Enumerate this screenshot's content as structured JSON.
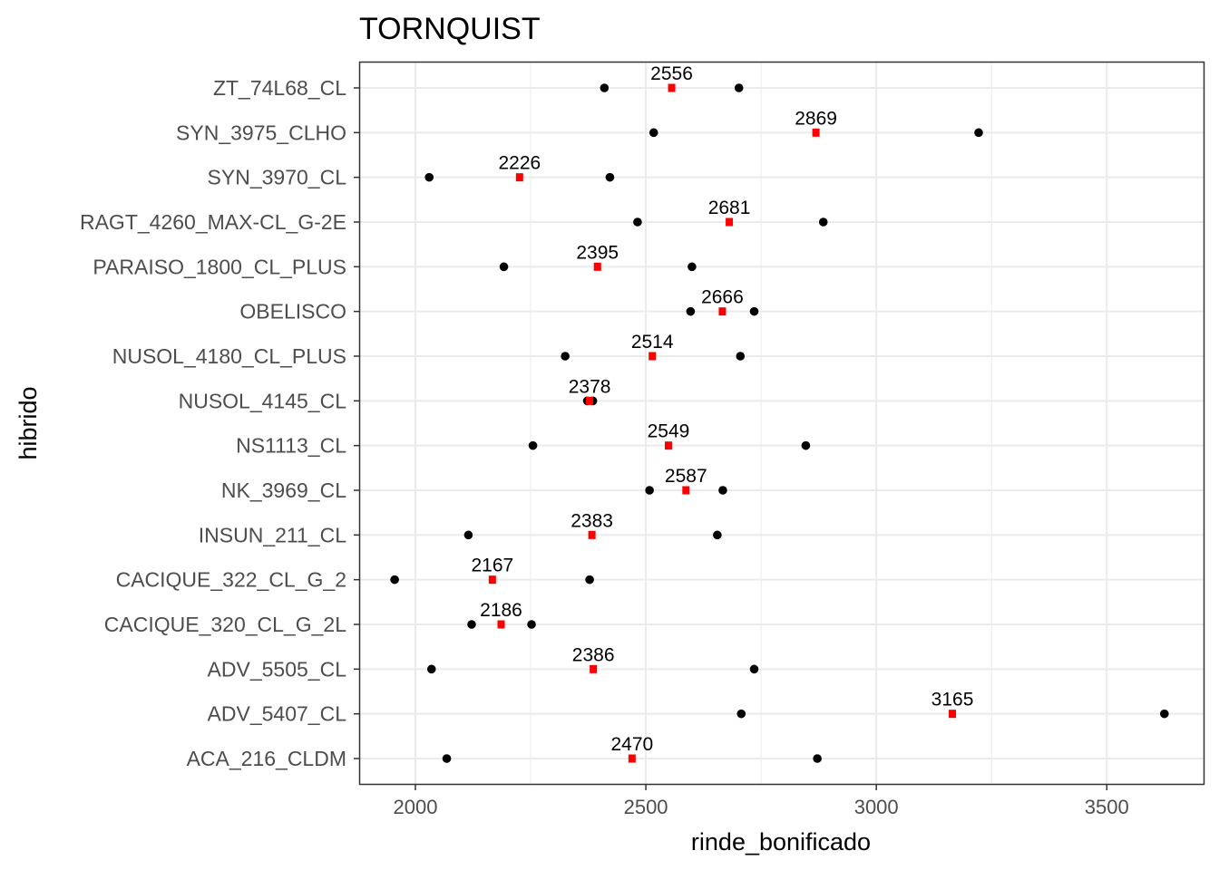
{
  "chart_data": {
    "type": "scatter",
    "title": "TORNQUIST",
    "xlabel": "rinde_bonificado",
    "ylabel": "hibrido",
    "xlim": [
      1880,
      3710
    ],
    "xticks": [
      2000,
      2500,
      3000,
      3500
    ],
    "grid": true,
    "legend": "none",
    "colors": {
      "points": "#000000",
      "mean": "#ff0000",
      "grid": "#ebebeb",
      "border": "#333333"
    },
    "categories": [
      "ACA_216_CLDM",
      "ADV_5407_CL",
      "ADV_5505_CL",
      "CACIQUE_320_CL_G_2L",
      "CACIQUE_322_CL_G_2",
      "INSUN_211_CL",
      "NK_3969_CL",
      "NS1113_CL",
      "NUSOL_4145_CL",
      "NUSOL_4180_CL_PLUS",
      "OBELISCO",
      "PARAISO_1800_CL_PLUS",
      "RAGT_4260_MAX-CL_G-2E",
      "SYN_3970_CL",
      "SYN_3975_CLHO",
      "ZT_74L68_CL"
    ],
    "series": [
      {
        "values": [
          [
            2068,
            2872
          ],
          [
            2707,
            3625
          ],
          [
            2035,
            2735
          ],
          [
            2122,
            2252
          ],
          [
            1955,
            2378
          ],
          [
            2115,
            2655
          ],
          [
            2508,
            2667
          ],
          [
            2255,
            2847
          ],
          [
            2373,
            2385
          ],
          [
            2325,
            2705
          ],
          [
            2597,
            2735
          ],
          [
            2192,
            2600
          ],
          [
            2482,
            2885
          ],
          [
            2030,
            2422
          ],
          [
            2517,
            3222
          ],
          [
            2410,
            2702
          ]
        ]
      },
      {
        "values": [
          2470,
          3165,
          2386,
          2186,
          2167,
          2383,
          2587,
          2549,
          2378,
          2514,
          2666,
          2395,
          2681,
          2226,
          2869,
          2556
        ],
        "labels": [
          "2470",
          "3165",
          "2386",
          "2186",
          "2167",
          "2383",
          "2587",
          "2549",
          "2378",
          "2514",
          "2666",
          "2395",
          "2681",
          "2226",
          "2869",
          "2556"
        ]
      }
    ]
  }
}
